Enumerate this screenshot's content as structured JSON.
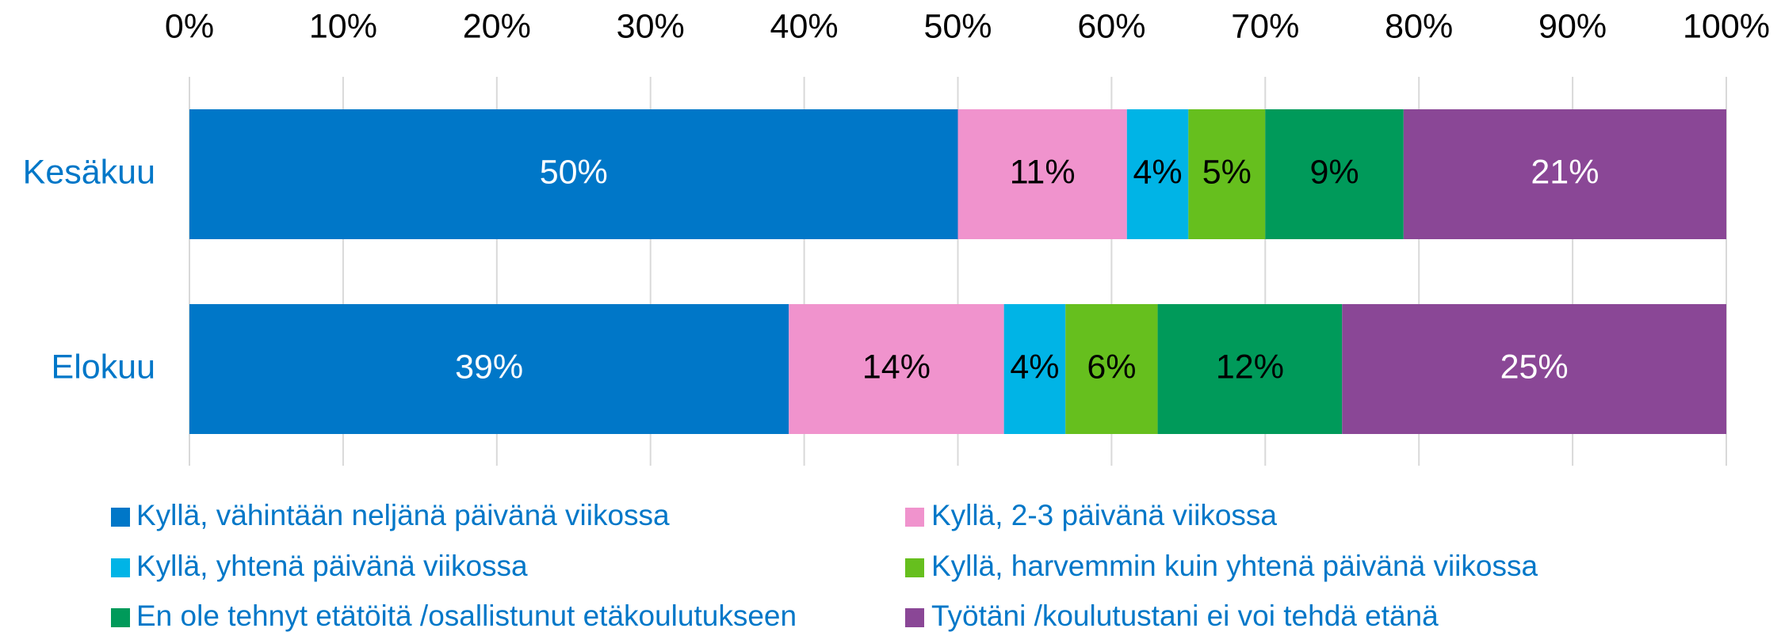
{
  "chart_data": {
    "type": "stacked_barh",
    "categories": [
      "Kesäkuu",
      "Elokuu"
    ],
    "series": [
      {
        "name": "Kyllä, vähintään neljänä päivänä viikossa",
        "color": "#0077c8",
        "label_color": "#ffffff",
        "values": [
          50,
          39
        ],
        "value_labels": [
          "50%",
          "39%"
        ]
      },
      {
        "name": "Kyllä, 2-3 päivänä viikossa",
        "color": "#f093cd",
        "label_color": "#000000",
        "values": [
          11,
          14
        ],
        "value_labels": [
          "11%",
          "14%"
        ]
      },
      {
        "name": "Kyllä, yhtenä päivänä viikossa",
        "color": "#00b4e6",
        "label_color": "#000000",
        "values": [
          4,
          4
        ],
        "value_labels": [
          "4%",
          "4%"
        ]
      },
      {
        "name": "Kyllä, harvemmin kuin yhtenä päivänä viikossa",
        "color": "#66bf1e",
        "label_color": "#000000",
        "values": [
          5,
          6
        ],
        "value_labels": [
          "5%",
          "6%"
        ]
      },
      {
        "name": "En ole tehnyt etätöitä /osallistunut etäkoulutukseen",
        "color": "#009a5a",
        "label_color": "#000000",
        "values": [
          9,
          12
        ],
        "value_labels": [
          "9%",
          "12%"
        ]
      },
      {
        "name": "Työtäni /koulutustani ei voi tehdä etänä",
        "color": "#8a4796",
        "label_color": "#ffffff",
        "values": [
          21,
          25
        ],
        "value_labels": [
          "21%",
          "25%"
        ]
      }
    ],
    "xlim": [
      0,
      100
    ],
    "xticks": [
      {
        "value": 0,
        "label": "0%"
      },
      {
        "value": 10,
        "label": "10%"
      },
      {
        "value": 20,
        "label": "20%"
      },
      {
        "value": 30,
        "label": "30%"
      },
      {
        "value": 40,
        "label": "40%"
      },
      {
        "value": 50,
        "label": "50%"
      },
      {
        "value": 60,
        "label": "60%"
      },
      {
        "value": 70,
        "label": "70%"
      },
      {
        "value": 80,
        "label": "80%"
      },
      {
        "value": 90,
        "label": "90%"
      },
      {
        "value": 100,
        "label": "100%"
      }
    ],
    "grid": true,
    "legend": "bottom"
  }
}
